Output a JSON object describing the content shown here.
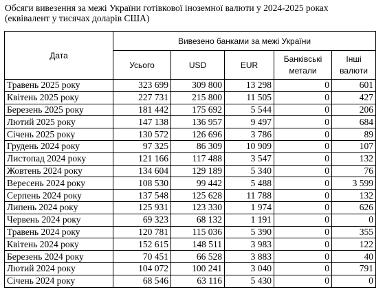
{
  "title_line1": "Обсяги вивезення за межі України готівкової іноземної валюти у 2024-2025 роках",
  "title_line2": "(еквівалент у тисячах доларів США)",
  "header": {
    "date": "Дата",
    "group": "Вивезено банками за межі України",
    "total": "Усього",
    "usd": "USD",
    "eur": "EUR",
    "metals": "Банківські метали",
    "other": "Інші валюти"
  },
  "rows": [
    {
      "date": "Травень 2025 року",
      "total": "323 699",
      "usd": "309 800",
      "eur": "13 298",
      "metals": "0",
      "other": "601"
    },
    {
      "date": "Квітень 2025 року",
      "total": "227 731",
      "usd": "215 800",
      "eur": "11 505",
      "metals": "0",
      "other": "427"
    },
    {
      "date": "Березень 2025 року",
      "total": "181 442",
      "usd": "175 692",
      "eur": "5 544",
      "metals": "0",
      "other": "206"
    },
    {
      "date": "Лютий 2025 року",
      "total": "147 138",
      "usd": "136 957",
      "eur": "9 497",
      "metals": "0",
      "other": "684"
    },
    {
      "date": "Січень 2025 року",
      "total": "130 572",
      "usd": "126 696",
      "eur": "3 786",
      "metals": "0",
      "other": "89"
    },
    {
      "date": "Грудень 2024 року",
      "total": "97 325",
      "usd": "86 309",
      "eur": "10 909",
      "metals": "0",
      "other": "107"
    },
    {
      "date": "Листопад 2024 року",
      "total": "121 166",
      "usd": "117 488",
      "eur": "3 547",
      "metals": "0",
      "other": "132"
    },
    {
      "date": "Жовтень 2024 року",
      "total": "134 604",
      "usd": "129 189",
      "eur": "5 340",
      "metals": "0",
      "other": "76"
    },
    {
      "date": "Вересень 2024 року",
      "total": "108 530",
      "usd": "99 442",
      "eur": "5 488",
      "metals": "0",
      "other": "3 599"
    },
    {
      "date": "Серпень 2024 року",
      "total": "137 548",
      "usd": "125 628",
      "eur": "11 788",
      "metals": "0",
      "other": "132"
    },
    {
      "date": "Липень 2024 року",
      "total": "125 931",
      "usd": "123 330",
      "eur": "1 974",
      "metals": "0",
      "other": "626"
    },
    {
      "date": "Червень 2024 року",
      "total": "69 323",
      "usd": "68 132",
      "eur": "1 191",
      "metals": "0",
      "other": "0"
    },
    {
      "date": "Травень 2024 року",
      "total": "120 781",
      "usd": "115 036",
      "eur": "5 390",
      "metals": "0",
      "other": "355"
    },
    {
      "date": "Квітень 2024 року",
      "total": "152 615",
      "usd": "148 511",
      "eur": "3 983",
      "metals": "0",
      "other": "122"
    },
    {
      "date": "Березень 2024 року",
      "total": "70 451",
      "usd": "66 528",
      "eur": "3 883",
      "metals": "0",
      "other": "40"
    },
    {
      "date": "Лютий 2024 року",
      "total": "104 072",
      "usd": "100 241",
      "eur": "3 040",
      "metals": "0",
      "other": "791"
    },
    {
      "date": "Січень 2024 року",
      "total": "68 546",
      "usd": "63 116",
      "eur": "5 430",
      "metals": "0",
      "other": "0"
    }
  ]
}
